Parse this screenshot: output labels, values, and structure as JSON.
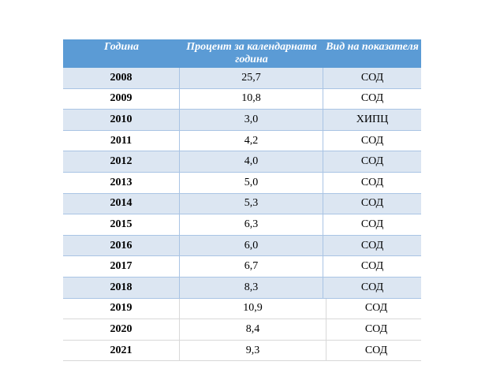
{
  "table": {
    "headers": [
      "Година",
      "Процент за календарната година",
      "Вид на показателя"
    ],
    "rows": [
      {
        "year": "2008",
        "percent": "25,7",
        "type": "СОД"
      },
      {
        "year": "2009",
        "percent": "10,8",
        "type": "СОД"
      },
      {
        "year": "2010",
        "percent": "3,0",
        "type": "ХИПЦ"
      },
      {
        "year": "2011",
        "percent": "4,2",
        "type": "СОД"
      },
      {
        "year": "2012",
        "percent": "4,0",
        "type": "СОД"
      },
      {
        "year": "2013",
        "percent": "5,0",
        "type": "СОД"
      },
      {
        "year": "2014",
        "percent": "5,3",
        "type": "СОД"
      },
      {
        "year": "2015",
        "percent": "6,3",
        "type": "СОД"
      },
      {
        "year": "2016",
        "percent": "6,0",
        "type": "СОД"
      },
      {
        "year": "2017",
        "percent": "6,7",
        "type": "СОД"
      },
      {
        "year": "2018",
        "percent": "8,3",
        "type": "СОД"
      },
      {
        "year": "2019",
        "percent": "10,9",
        "type": "СОД"
      },
      {
        "year": "2020",
        "percent": "8,4",
        "type": "СОД"
      },
      {
        "year": "2021",
        "percent": "9,3",
        "type": "СОД"
      }
    ]
  },
  "colors": {
    "header_bg": "#5b9bd5",
    "stripe_bg": "#dce6f2"
  }
}
